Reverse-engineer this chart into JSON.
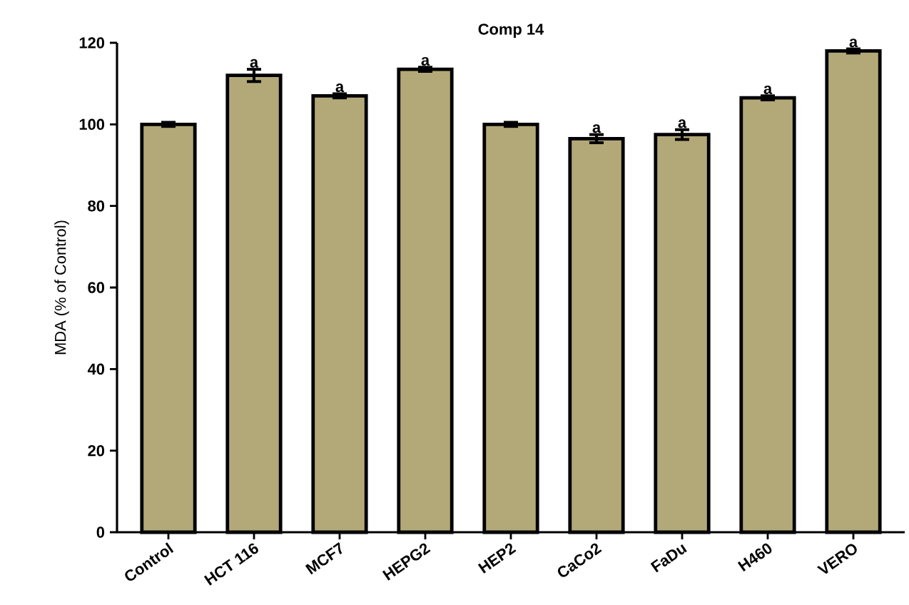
{
  "chart_data": {
    "type": "bar",
    "title": "Comp 14",
    "ylabel": "MDA (% of Control)",
    "categories": [
      "Control",
      "HCT 116",
      "MCF7",
      "HEPG2",
      "HEP2",
      "CaCo2",
      "FaDu",
      "H460",
      "VERO"
    ],
    "values": [
      100,
      112,
      107,
      113.5,
      100,
      96.5,
      97.5,
      106.5,
      118
    ],
    "errors": [
      0.5,
      1.5,
      0.5,
      0.5,
      0.5,
      1,
      1.2,
      0.5,
      0.5
    ],
    "color": "#b3a878",
    "ylim": [
      0,
      120
    ],
    "yticks": [
      0,
      20,
      40,
      60,
      80,
      100,
      120
    ],
    "annotations": [
      {
        "text": "a",
        "x": "HCT 116",
        "y": 113.5
      },
      {
        "text": "a",
        "x": "MCF7",
        "y": 107.5
      },
      {
        "text": "a",
        "x": "HEPG2",
        "y": 114
      },
      {
        "text": "a",
        "x": "CaCo2",
        "y": 97.5
      },
      {
        "text": "a",
        "x": "FaDu",
        "y": 98.7
      },
      {
        "text": "a",
        "x": "H460",
        "y": 107
      },
      {
        "text": "a",
        "x": "VERO",
        "y": 118.5
      }
    ]
  }
}
